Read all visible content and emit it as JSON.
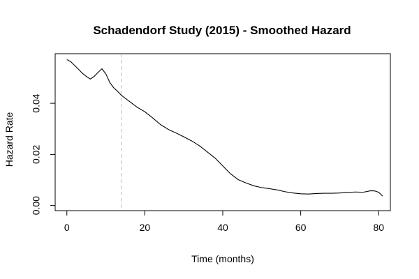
{
  "chart_data": {
    "type": "line",
    "title": "Schadendorf Study (2015) -  Smoothed Hazard",
    "xlabel": "Time (months)",
    "ylabel": "Hazard Rate",
    "xlim": [
      -3,
      83
    ],
    "ylim": [
      -0.002,
      0.0594
    ],
    "x_ticks": [
      0,
      20,
      40,
      60,
      80
    ],
    "x_tick_labels": [
      "0",
      "20",
      "40",
      "60",
      "80"
    ],
    "y_ticks": [
      0.0,
      0.02,
      0.04
    ],
    "y_tick_labels": [
      "0.00",
      "0.02",
      "0.04"
    ],
    "grid": false,
    "reference_line": {
      "axis": "x",
      "value": 14,
      "style": "dashed",
      "color": "#bbbbbb"
    },
    "series": [
      {
        "color": "#000000",
        "x": [
          0,
          1,
          2,
          3,
          4,
          5,
          6,
          7,
          8,
          9,
          10,
          11,
          12,
          13,
          14,
          16,
          18,
          20,
          22,
          24,
          26,
          28,
          30,
          32,
          34,
          36,
          38,
          40,
          42,
          44,
          46,
          48,
          50,
          52,
          54,
          56,
          58,
          60,
          62,
          64,
          66,
          68,
          70,
          72,
          74,
          76,
          78,
          79,
          80,
          81
        ],
        "y": [
          0.0571,
          0.0563,
          0.0548,
          0.0533,
          0.0517,
          0.0505,
          0.0495,
          0.0505,
          0.0521,
          0.0535,
          0.0515,
          0.0482,
          0.0461,
          0.0447,
          0.0431,
          0.0408,
          0.0385,
          0.0367,
          0.0343,
          0.0317,
          0.0298,
          0.0284,
          0.0269,
          0.0253,
          0.0234,
          0.021,
          0.0186,
          0.0155,
          0.0124,
          0.0101,
          0.0088,
          0.0077,
          0.007,
          0.0066,
          0.0061,
          0.0054,
          0.0049,
          0.0046,
          0.0045,
          0.0047,
          0.0048,
          0.0048,
          0.0049,
          0.0051,
          0.0053,
          0.0052,
          0.0058,
          0.0057,
          0.0052,
          0.0037
        ]
      }
    ]
  }
}
